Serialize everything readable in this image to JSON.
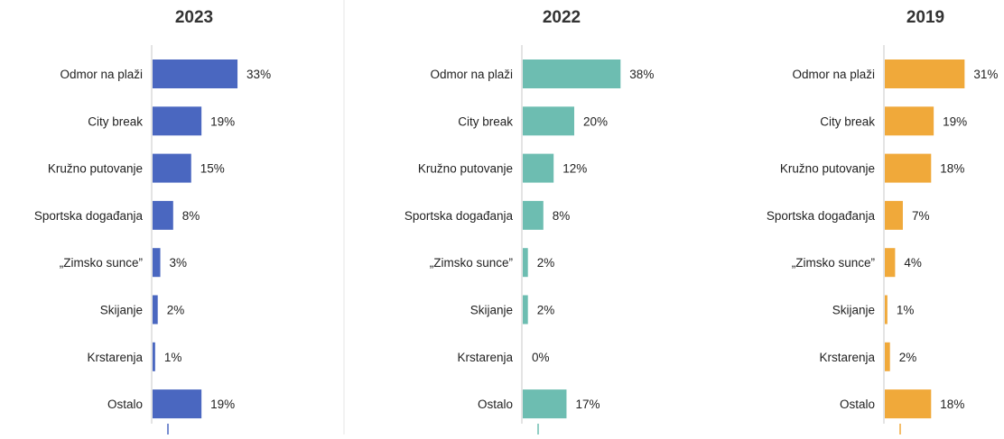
{
  "chart_data": [
    {
      "type": "bar",
      "orientation": "horizontal",
      "title": "2023",
      "categories": [
        "Odmor na plaži",
        "City break",
        "Kružno putovanje",
        "Sportska događanja",
        "„Zimsko sunce”",
        "Skijanje",
        "Krstarenja",
        "Ostalo"
      ],
      "values": [
        33,
        19,
        15,
        8,
        3,
        2,
        1,
        19
      ],
      "value_labels": [
        "33%",
        "19%",
        "15%",
        "8%",
        "3%",
        "2%",
        "1%",
        "19%"
      ],
      "color": "#4A67C0",
      "xlim": [
        0,
        40
      ],
      "grid": false,
      "legend": "none"
    },
    {
      "type": "bar",
      "orientation": "horizontal",
      "title": "2022",
      "categories": [
        "Odmor na plaži",
        "City break",
        "Kružno putovanje",
        "Sportska događanja",
        "„Zimsko sunce”",
        "Skijanje",
        "Krstarenja",
        "Ostalo"
      ],
      "values": [
        38,
        20,
        12,
        8,
        2,
        2,
        0,
        17
      ],
      "value_labels": [
        "38%",
        "20%",
        "12%",
        "8%",
        "2%",
        "2%",
        "0%",
        "17%"
      ],
      "color": "#6DBDB1",
      "xlim": [
        0,
        40
      ],
      "grid": false,
      "legend": "none"
    },
    {
      "type": "bar",
      "orientation": "horizontal",
      "title": "2019",
      "categories": [
        "Odmor na plaži",
        "City break",
        "Kružno putovanje",
        "Sportska događanja",
        "„Zimsko sunce”",
        "Skijanje",
        "Krstarenja",
        "Ostalo"
      ],
      "values": [
        31,
        19,
        18,
        7,
        4,
        1,
        2,
        18
      ],
      "value_labels": [
        "31%",
        "19%",
        "18%",
        "7%",
        "4%",
        "1%",
        "2%",
        "18%"
      ],
      "color": "#F0A93A",
      "xlim": [
        0,
        40
      ],
      "grid": false,
      "legend": "none"
    }
  ]
}
